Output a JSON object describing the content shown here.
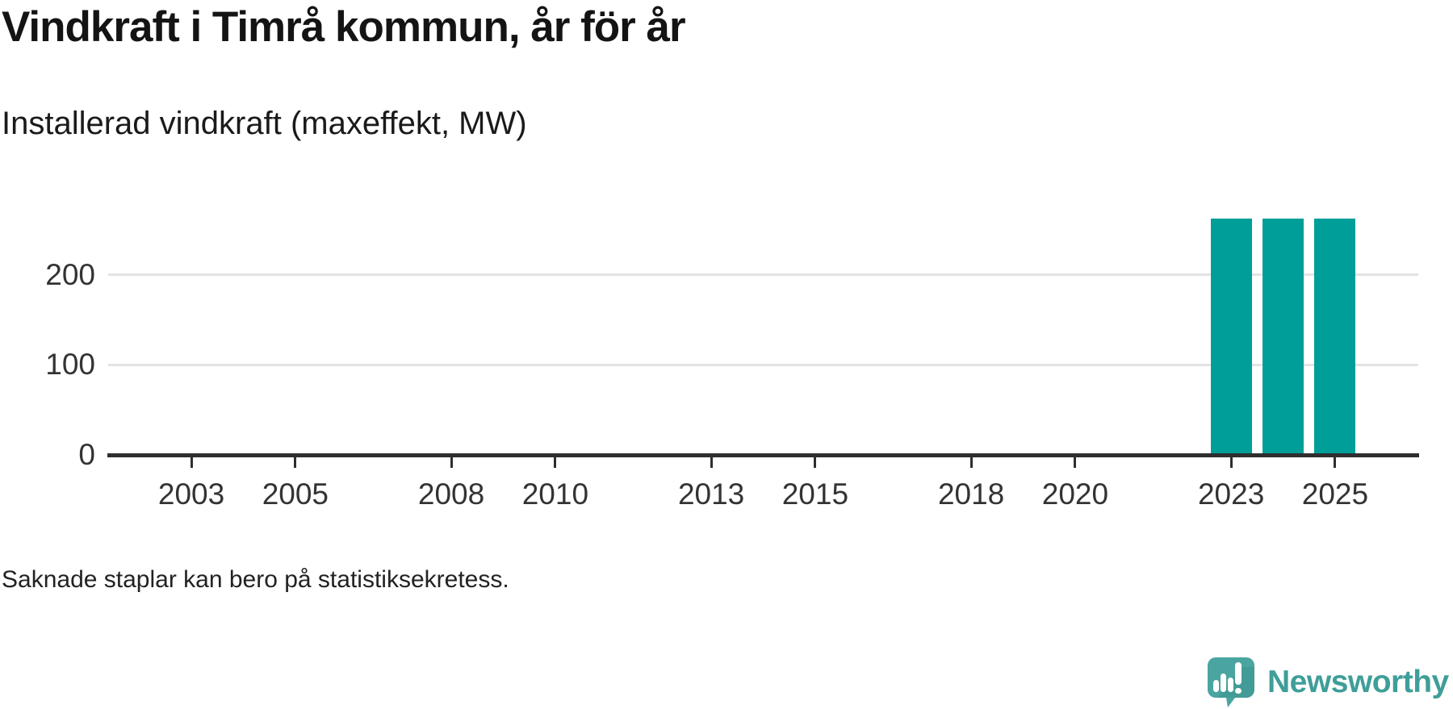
{
  "page": {
    "title": "Vindkraft i Timrå kommun, år för år",
    "subtitle": "Installerad vindkraft (maxeffekt, MW)",
    "footnote": "Saknade staplar kan bero på statistiksekretess.",
    "brand": {
      "name": "Newsworthy",
      "icon": "newsworthy-speech-bubble-bar-chart-icon"
    }
  },
  "colors": {
    "bar": "#009e99",
    "axis": "#2e2e2e",
    "gridline": "#e3e3e3",
    "tick_label": "#333333",
    "title_text": "#141414",
    "brand_teal": "#3f9e99",
    "brand_icon_fill": "#4aa5a1",
    "brand_icon_shade": "#3d948f",
    "background": "#ffffff"
  },
  "chart_data": {
    "type": "bar",
    "title": "Vindkraft i Timrå kommun, år för år",
    "subtitle": "Installerad vindkraft (maxeffekt, MW)",
    "xlabel": "",
    "ylabel": "Installerad vindkraft (maxeffekt, MW)",
    "x": [
      2023,
      2024,
      2025
    ],
    "values": [
      262,
      262,
      262
    ],
    "series": [
      {
        "name": "Installerad vindkraft (maxeffekt, MW)",
        "x": [
          2023,
          2024,
          2025
        ],
        "values": [
          262,
          262,
          262
        ]
      }
    ],
    "xticks": [
      2003,
      2005,
      2008,
      2010,
      2013,
      2015,
      2018,
      2020,
      2023,
      2025
    ],
    "yticks": [
      0,
      100,
      200
    ],
    "xlim": [
      2001.4,
      2026.6
    ],
    "ylim": [
      0,
      300
    ],
    "grid": "horizontal gridlines at 100 and 200 only",
    "legend": "none",
    "bar_color": "#009e99",
    "note": "Saknade staplar kan bero på statistiksekretess."
  }
}
